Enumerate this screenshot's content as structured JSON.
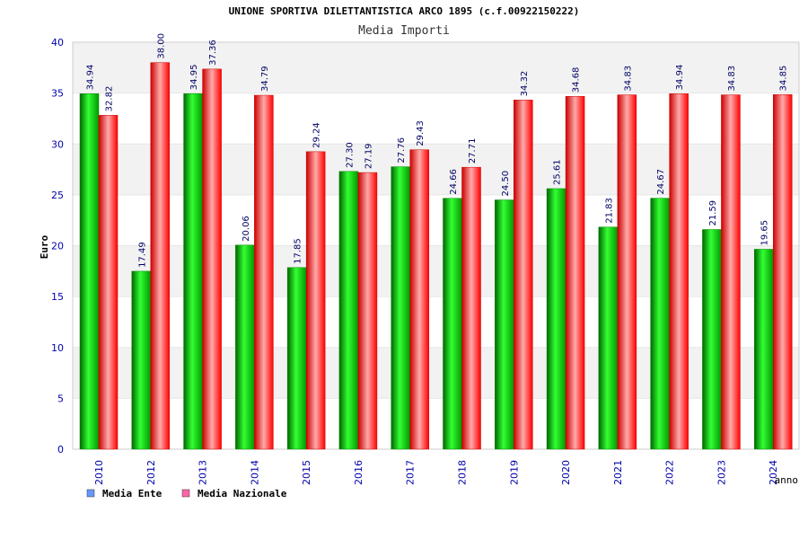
{
  "chart_data": {
    "type": "bar",
    "title": "UNIONE SPORTIVA DILETTANTISTICA ARCO 1895 (c.f.00922150222)",
    "subtitle": "Media Importi",
    "xlabel": "anno",
    "ylabel": "Euro",
    "ylim": [
      0,
      40
    ],
    "yticks": [
      0,
      5,
      10,
      15,
      20,
      25,
      30,
      35,
      40
    ],
    "categories": [
      "2010",
      "2012",
      "2013",
      "2014",
      "2015",
      "2016",
      "2017",
      "2018",
      "2019",
      "2020",
      "2021",
      "2022",
      "2023",
      "2024"
    ],
    "series": [
      {
        "name": "Media Ente",
        "values": [
          34.94,
          17.49,
          34.95,
          20.06,
          17.85,
          27.3,
          27.76,
          24.66,
          24.5,
          25.61,
          21.83,
          24.67,
          21.59,
          19.65
        ],
        "labels": [
          "34.94",
          "17.49",
          "34.95",
          "20.06",
          "17.85",
          "27.30",
          "27.76",
          "24.66",
          "24.50",
          "25.61",
          "21.83",
          "24.67",
          "21.59",
          "19.65"
        ]
      },
      {
        "name": "Media Nazionale",
        "values": [
          32.82,
          38.0,
          37.36,
          34.79,
          29.24,
          27.19,
          29.43,
          27.71,
          34.32,
          34.68,
          34.83,
          34.94,
          34.83,
          34.85
        ],
        "labels": [
          "32.82",
          "38.00",
          "37.36",
          "34.79",
          "29.24",
          "27.19",
          "29.43",
          "27.71",
          "34.32",
          "34.68",
          "34.83",
          "34.94",
          "34.83",
          "34.85"
        ]
      }
    ],
    "legend": "bottom-left",
    "colors": {
      "ente": "#00cc00",
      "nazionale": "#ff0000",
      "legend_ente": "#6699ff",
      "legend_nazionale": "#ff66aa",
      "axis_text": "#0000aa",
      "label_text": "#000066"
    }
  }
}
